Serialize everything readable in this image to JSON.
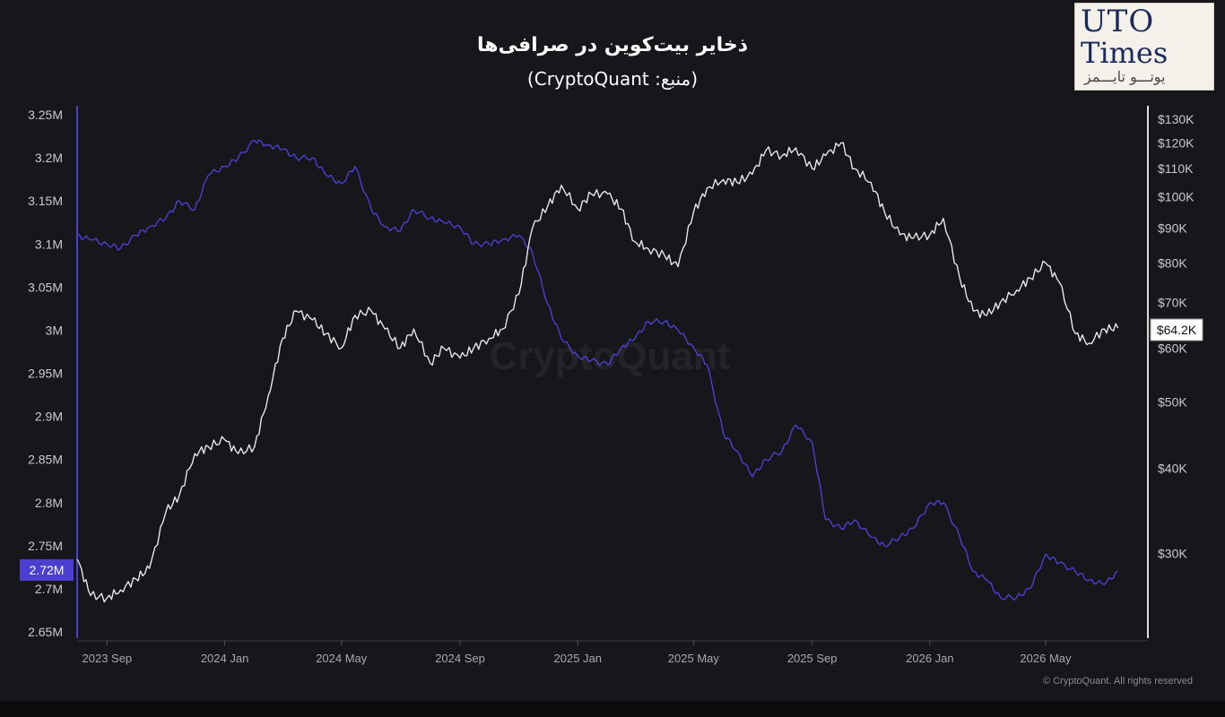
{
  "header": {
    "title": "ذخایر بیت‌کوین در صرافی‌ها",
    "subtitle": "(منبع: CryptoQuant)"
  },
  "logo": {
    "line1": "UTO",
    "line2": "Times",
    "line3": "یوتـــو تایـــمز"
  },
  "footer": {
    "copyright": "© CryptoQuant. All rights reserved"
  },
  "watermark": "CryptoQuant",
  "colors": {
    "background": "#16161b",
    "reserve_line": "#4b3fd0",
    "price_line": "#e6e6e6",
    "left_axis": "#4b3fd0",
    "right_axis": "#e6e6e6"
  },
  "chart_data": {
    "type": "line",
    "title": "ذخایر بیت‌کوین در صرافی‌ها",
    "subtitle": "(منبع: CryptoQuant)",
    "x_tick_labels": [
      "2023 Sep",
      "2024 Jan",
      "2024 May",
      "2024 Sep",
      "2025 Jan",
      "2025 May",
      "2025 Sep",
      "2026 Jan",
      "2026 May"
    ],
    "left_axis": {
      "tick_labels": [
        "3.25M",
        "3.2M",
        "3.15M",
        "3.1M",
        "3.05M",
        "3M",
        "2.95M",
        "2.9M",
        "2.85M",
        "2.8M",
        "2.75M",
        "2.7M",
        "2.65M"
      ],
      "ylim": [
        2.65,
        3.25
      ],
      "unit": "M",
      "current_value_label": "2.72M"
    },
    "right_axis": {
      "scale": "log",
      "tick_labels": [
        "$130K",
        "$120K",
        "$110K",
        "$100K",
        "$90K",
        "$80K",
        "$70K",
        "$60K",
        "$50K",
        "$40K",
        "$30K"
      ],
      "tick_values": [
        130,
        120,
        110,
        100,
        90,
        80,
        70,
        60,
        50,
        40,
        30
      ],
      "ylim": [
        23,
        132
      ],
      "unit": "K",
      "current_value_label": "$64.2K"
    },
    "x_range": [
      "2023-08-01",
      "2026-08-15"
    ],
    "series": [
      {
        "axis": "left",
        "color": "#4b3fd0",
        "points": [
          [
            "2023-08-01",
            3.11
          ],
          [
            "2023-08-15",
            3.105
          ],
          [
            "2023-09-01",
            3.1
          ],
          [
            "2023-09-15",
            3.095
          ],
          [
            "2023-10-01",
            3.11
          ],
          [
            "2023-10-15",
            3.12
          ],
          [
            "2023-11-01",
            3.13
          ],
          [
            "2023-11-15",
            3.15
          ],
          [
            "2023-12-01",
            3.14
          ],
          [
            "2023-12-15",
            3.18
          ],
          [
            "2024-01-01",
            3.19
          ],
          [
            "2024-01-15",
            3.2
          ],
          [
            "2024-02-01",
            3.22
          ],
          [
            "2024-02-15",
            3.215
          ],
          [
            "2024-03-01",
            3.21
          ],
          [
            "2024-03-15",
            3.2
          ],
          [
            "2024-04-01",
            3.2
          ],
          [
            "2024-04-15",
            3.18
          ],
          [
            "2024-05-01",
            3.17
          ],
          [
            "2024-05-15",
            3.19
          ],
          [
            "2024-06-01",
            3.14
          ],
          [
            "2024-06-15",
            3.12
          ],
          [
            "2024-07-01",
            3.115
          ],
          [
            "2024-07-15",
            3.14
          ],
          [
            "2024-08-01",
            3.13
          ],
          [
            "2024-08-15",
            3.125
          ],
          [
            "2024-09-01",
            3.12
          ],
          [
            "2024-09-15",
            3.1
          ],
          [
            "2024-10-01",
            3.1
          ],
          [
            "2024-10-15",
            3.105
          ],
          [
            "2024-11-01",
            3.11
          ],
          [
            "2024-11-15",
            3.09
          ],
          [
            "2024-12-01",
            3.03
          ],
          [
            "2024-12-15",
            2.99
          ],
          [
            "2025-01-01",
            2.97
          ],
          [
            "2025-01-15",
            2.965
          ],
          [
            "2025-02-01",
            2.96
          ],
          [
            "2025-02-15",
            2.98
          ],
          [
            "2025-03-01",
            2.99
          ],
          [
            "2025-03-15",
            3.01
          ],
          [
            "2025-04-01",
            3.01
          ],
          [
            "2025-04-15",
            3.0
          ],
          [
            "2025-05-01",
            2.98
          ],
          [
            "2025-05-15",
            2.96
          ],
          [
            "2025-06-01",
            2.88
          ],
          [
            "2025-06-15",
            2.86
          ],
          [
            "2025-07-01",
            2.83
          ],
          [
            "2025-07-15",
            2.85
          ],
          [
            "2025-08-01",
            2.86
          ],
          [
            "2025-08-15",
            2.89
          ],
          [
            "2025-09-01",
            2.87
          ],
          [
            "2025-09-15",
            2.78
          ],
          [
            "2025-10-01",
            2.77
          ],
          [
            "2025-10-15",
            2.78
          ],
          [
            "2025-11-01",
            2.76
          ],
          [
            "2025-11-15",
            2.75
          ],
          [
            "2025-12-01",
            2.76
          ],
          [
            "2025-12-15",
            2.77
          ],
          [
            "2026-01-01",
            2.8
          ],
          [
            "2026-01-15",
            2.8
          ],
          [
            "2026-02-01",
            2.76
          ],
          [
            "2026-02-15",
            2.72
          ],
          [
            "2026-03-01",
            2.71
          ],
          [
            "2026-03-15",
            2.69
          ],
          [
            "2026-04-01",
            2.69
          ],
          [
            "2026-04-15",
            2.7
          ],
          [
            "2026-05-01",
            2.74
          ],
          [
            "2026-05-15",
            2.73
          ],
          [
            "2026-06-01",
            2.72
          ],
          [
            "2026-06-15",
            2.71
          ],
          [
            "2026-07-01",
            2.705
          ],
          [
            "2026-07-15",
            2.72
          ]
        ]
      },
      {
        "axis": "right",
        "color": "#e6e6e6",
        "points": [
          [
            "2023-08-01",
            29.4
          ],
          [
            "2023-08-15",
            26
          ],
          [
            "2023-09-01",
            25.8
          ],
          [
            "2023-09-15",
            26.5
          ],
          [
            "2023-10-01",
            27.5
          ],
          [
            "2023-10-15",
            28.5
          ],
          [
            "2023-11-01",
            34.5
          ],
          [
            "2023-11-15",
            36.5
          ],
          [
            "2023-12-01",
            42
          ],
          [
            "2023-12-15",
            43
          ],
          [
            "2024-01-01",
            44
          ],
          [
            "2024-01-15",
            42
          ],
          [
            "2024-02-01",
            43
          ],
          [
            "2024-02-15",
            51
          ],
          [
            "2024-03-01",
            62
          ],
          [
            "2024-03-15",
            68
          ],
          [
            "2024-04-01",
            66
          ],
          [
            "2024-04-15",
            63
          ],
          [
            "2024-05-01",
            60
          ],
          [
            "2024-05-15",
            67
          ],
          [
            "2024-06-01",
            68
          ],
          [
            "2024-06-15",
            64
          ],
          [
            "2024-07-01",
            60
          ],
          [
            "2024-07-15",
            64
          ],
          [
            "2024-08-01",
            57
          ],
          [
            "2024-08-15",
            60
          ],
          [
            "2024-09-01",
            58
          ],
          [
            "2024-09-15",
            60
          ],
          [
            "2024-10-01",
            62
          ],
          [
            "2024-10-15",
            64
          ],
          [
            "2024-11-01",
            72
          ],
          [
            "2024-11-15",
            90
          ],
          [
            "2024-12-01",
            97
          ],
          [
            "2024-12-15",
            104
          ],
          [
            "2025-01-01",
            96
          ],
          [
            "2025-01-15",
            101
          ],
          [
            "2025-02-01",
            101
          ],
          [
            "2025-02-15",
            96
          ],
          [
            "2025-03-01",
            86
          ],
          [
            "2025-03-15",
            84
          ],
          [
            "2025-04-01",
            82
          ],
          [
            "2025-04-15",
            79
          ],
          [
            "2025-05-01",
            95
          ],
          [
            "2025-05-15",
            103
          ],
          [
            "2025-06-01",
            106
          ],
          [
            "2025-06-15",
            105
          ],
          [
            "2025-07-01",
            108
          ],
          [
            "2025-07-15",
            117
          ],
          [
            "2025-08-01",
            115
          ],
          [
            "2025-08-15",
            118
          ],
          [
            "2025-09-01",
            110
          ],
          [
            "2025-09-15",
            115
          ],
          [
            "2025-10-01",
            120
          ],
          [
            "2025-10-15",
            110
          ],
          [
            "2025-11-01",
            105
          ],
          [
            "2025-11-15",
            95
          ],
          [
            "2025-12-01",
            88
          ],
          [
            "2025-12-15",
            87
          ],
          [
            "2026-01-01",
            88
          ],
          [
            "2026-01-15",
            93
          ],
          [
            "2026-02-01",
            76
          ],
          [
            "2026-02-15",
            68
          ],
          [
            "2026-03-01",
            67
          ],
          [
            "2026-03-15",
            70
          ],
          [
            "2026-04-01",
            73
          ],
          [
            "2026-04-15",
            76
          ],
          [
            "2026-05-01",
            80
          ],
          [
            "2026-05-15",
            75
          ],
          [
            "2026-06-01",
            63
          ],
          [
            "2026-06-15",
            61
          ],
          [
            "2026-07-01",
            64
          ],
          [
            "2026-07-15",
            64.2
          ]
        ]
      }
    ],
    "grid": false,
    "legend": "none"
  }
}
